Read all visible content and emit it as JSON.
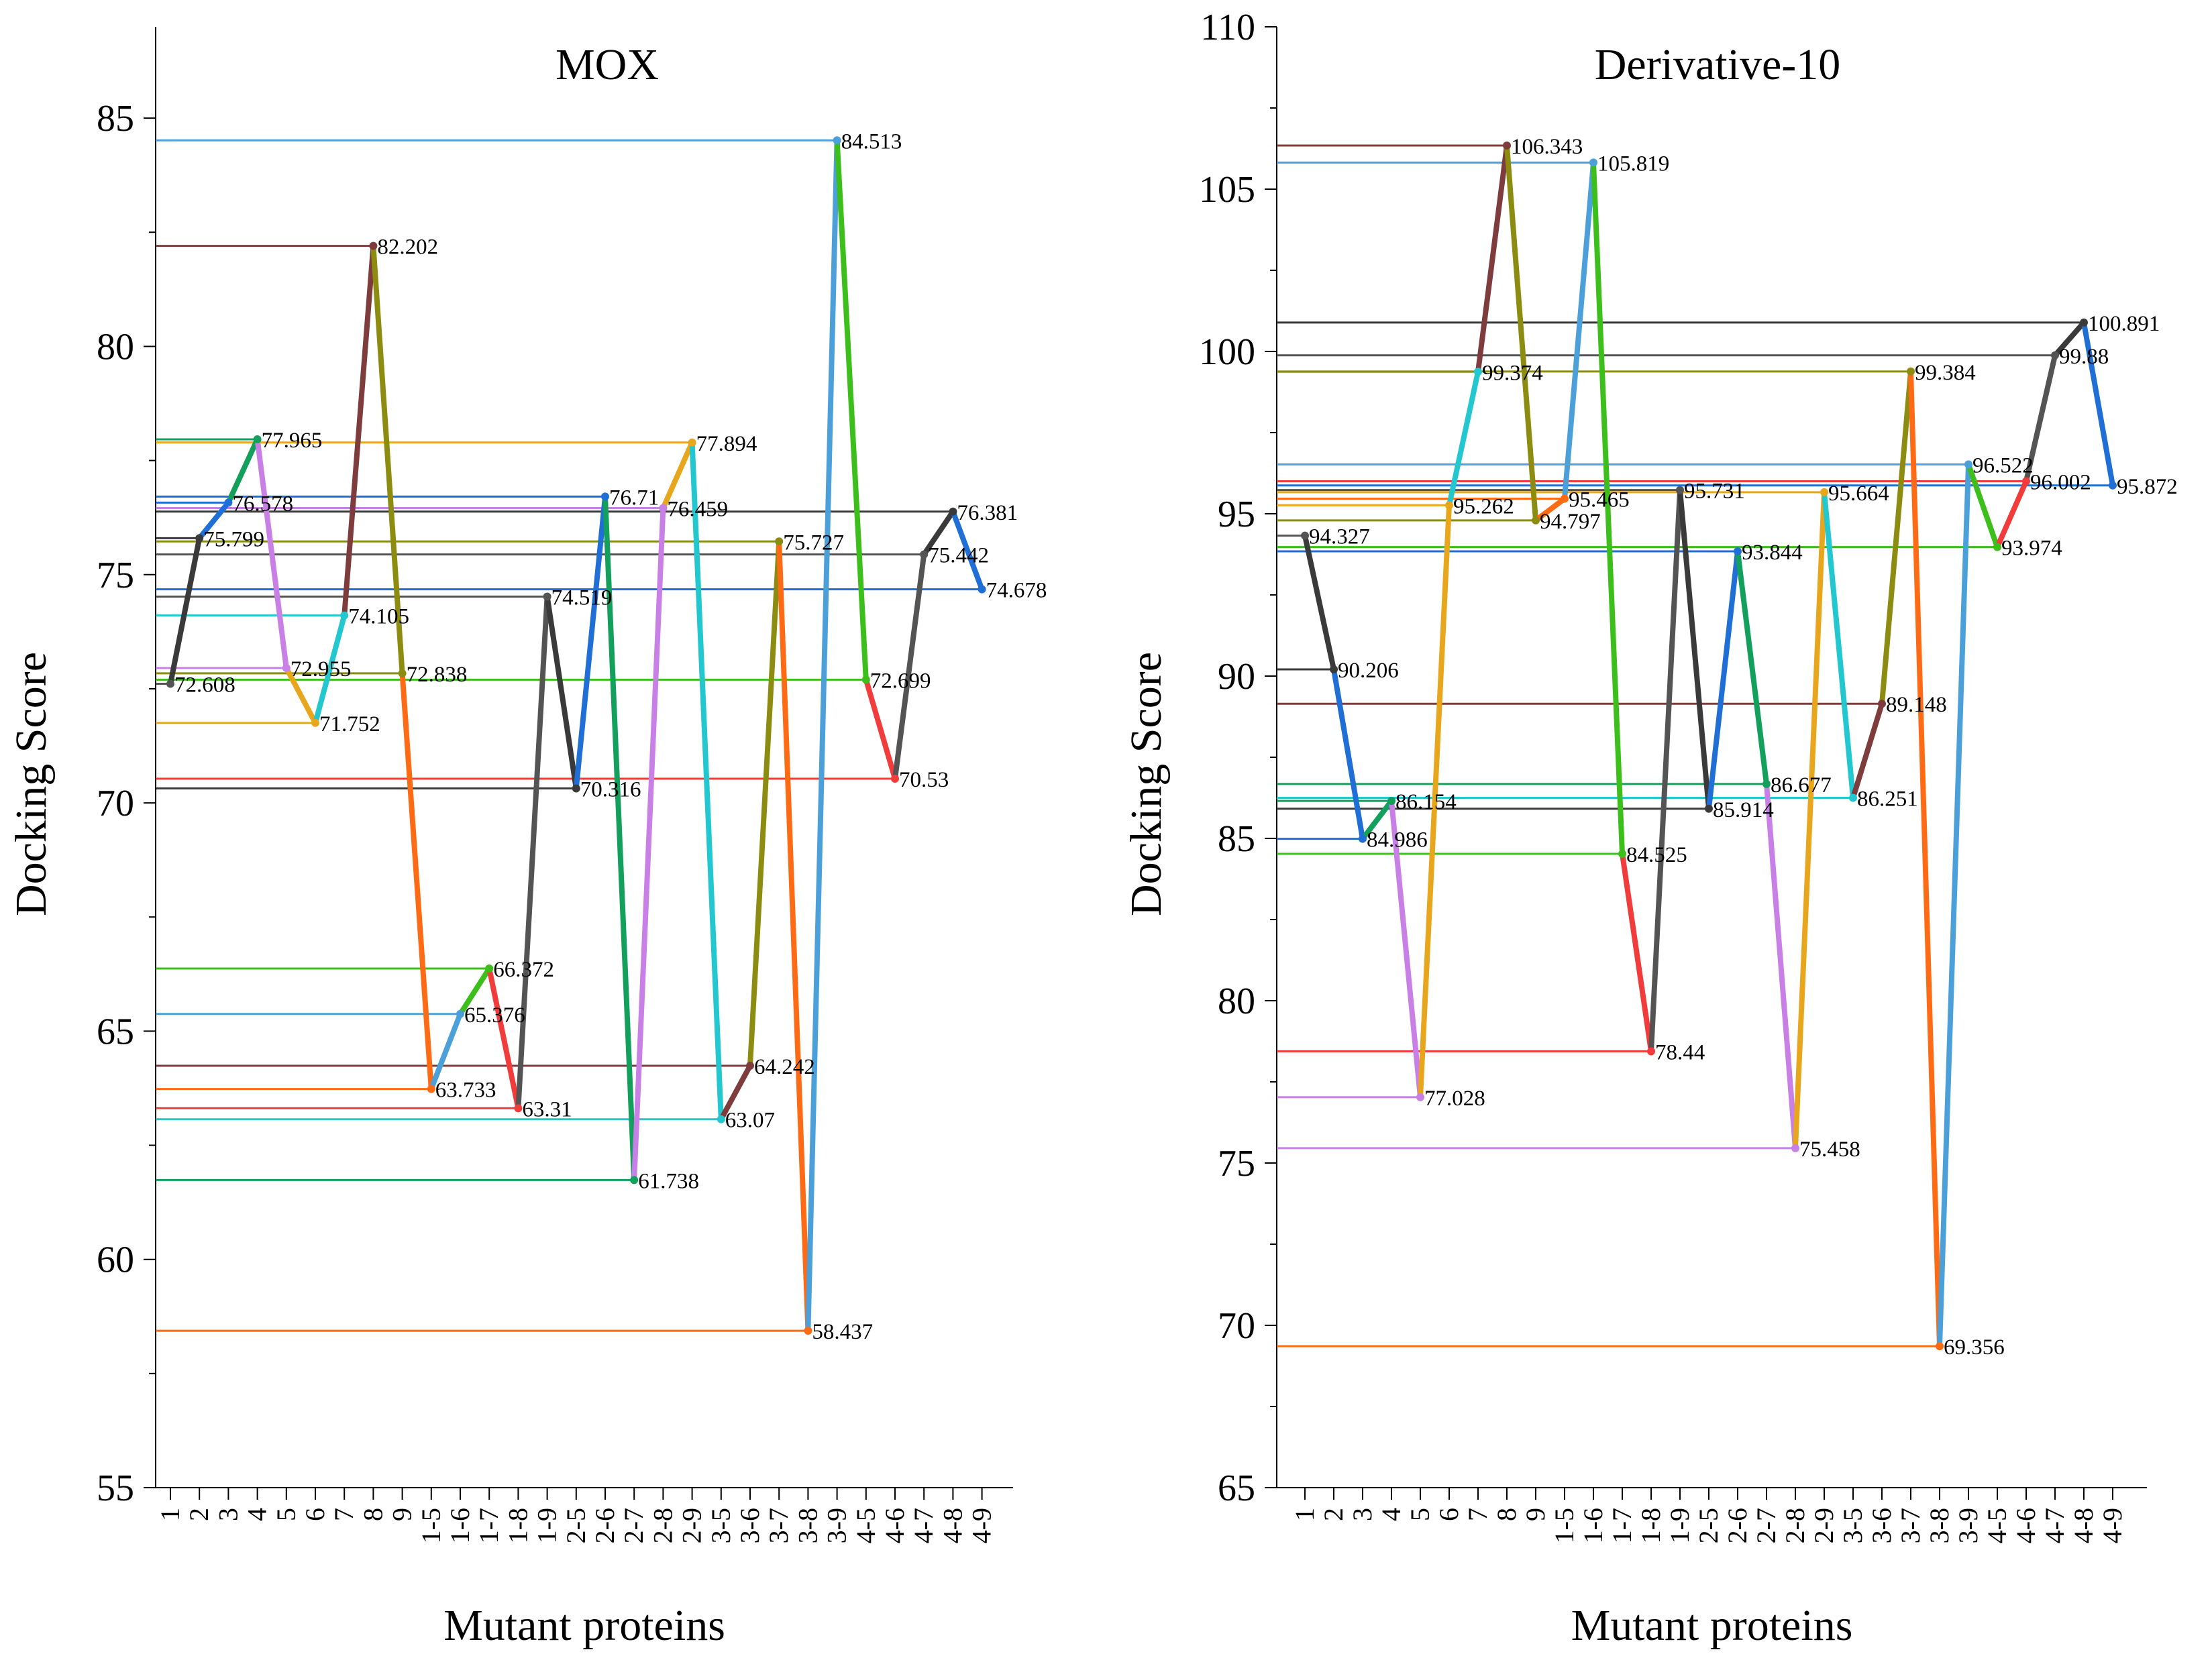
{
  "chart_data": [
    {
      "type": "line",
      "title": "MOX",
      "xlabel": "Mutant proteins",
      "ylabel": "Docking Score",
      "ylim": [
        55,
        87
      ],
      "yticks": [
        55,
        60,
        65,
        70,
        75,
        80,
        85
      ],
      "categories": [
        "1",
        "2",
        "3",
        "4",
        "5",
        "6",
        "7",
        "8",
        "9",
        "1-5",
        "1-6",
        "1-7",
        "1-8",
        "1-9",
        "2-5",
        "2-6",
        "2-7",
        "2-8",
        "2-9",
        "3-5",
        "3-6",
        "3-7",
        "3-8",
        "3-9",
        "4-5",
        "4-6",
        "4-7",
        "4-8",
        "4-9"
      ],
      "values": [
        72.608,
        75.799,
        76.578,
        77.965,
        72.955,
        71.752,
        74.105,
        82.202,
        72.838,
        63.733,
        65.376,
        66.372,
        63.31,
        74.519,
        70.316,
        76.71,
        61.738,
        76.459,
        77.894,
        63.07,
        64.242,
        75.727,
        58.437,
        84.513,
        72.699,
        70.53,
        75.442,
        76.381,
        74.678
      ],
      "labels": [
        "72.608",
        "75.799",
        "76.578",
        "77.965",
        "72.955",
        "71.752",
        "74.105",
        "82.202",
        "72.838",
        "63.733",
        "65.376",
        "66.372",
        "63.31",
        "74.519",
        "70.316",
        "76.71",
        "61.738",
        "76.459",
        "77.894",
        "63.07",
        "64.242",
        "75.727",
        "58.437",
        "84.513",
        "72.699",
        "70.53",
        "75.442",
        "76.381",
        "74.678"
      ]
    },
    {
      "type": "line",
      "title": "Derivative-10",
      "xlabel": "Mutant proteins",
      "ylabel": "Docking Score",
      "ylim": [
        65,
        110
      ],
      "yticks": [
        65,
        70,
        75,
        80,
        85,
        90,
        95,
        100,
        105,
        110
      ],
      "categories": [
        "1",
        "2",
        "3",
        "4",
        "5",
        "6",
        "7",
        "8",
        "9",
        "1-5",
        "1-6",
        "1-7",
        "1-8",
        "1-9",
        "2-5",
        "2-6",
        "2-7",
        "2-8",
        "2-9",
        "3-5",
        "3-6",
        "3-7",
        "3-8",
        "3-9",
        "4-5",
        "4-6",
        "4-7",
        "4-8",
        "4-9"
      ],
      "values": [
        94.327,
        90.206,
        84.986,
        86.154,
        77.028,
        95.262,
        99.374,
        106.343,
        94.797,
        95.465,
        105.819,
        84.525,
        78.44,
        95.731,
        85.914,
        93.844,
        86.677,
        75.458,
        95.664,
        86.251,
        89.148,
        99.384,
        69.356,
        96.522,
        93.974,
        96.002,
        99.88,
        100.891,
        95.872
      ],
      "labels": [
        "94.327",
        "90.206",
        "84.986",
        "86.154",
        "77.028",
        "95.262",
        "99.374",
        "106.343",
        "94.797",
        "95.465",
        "105.819",
        "84.525",
        "78.44",
        "95.731",
        "85.914",
        "93.844",
        "86.677",
        "75.458",
        "95.664",
        "86.251",
        "89.148",
        "99.384",
        "69.356",
        "96.522",
        "93.974",
        "96.002",
        "99.88",
        "100.891",
        "95.872"
      ]
    }
  ],
  "palette": [
    "#545454",
    "#3a3a3a",
    "#1f6fd6",
    "#12a05c",
    "#c880e6",
    "#e8a61c",
    "#22c7cf",
    "#7e3c3c",
    "#8c8c10",
    "#ff6b14",
    "#4ba0d9",
    "#3cbf1a",
    "#f23b3b"
  ]
}
